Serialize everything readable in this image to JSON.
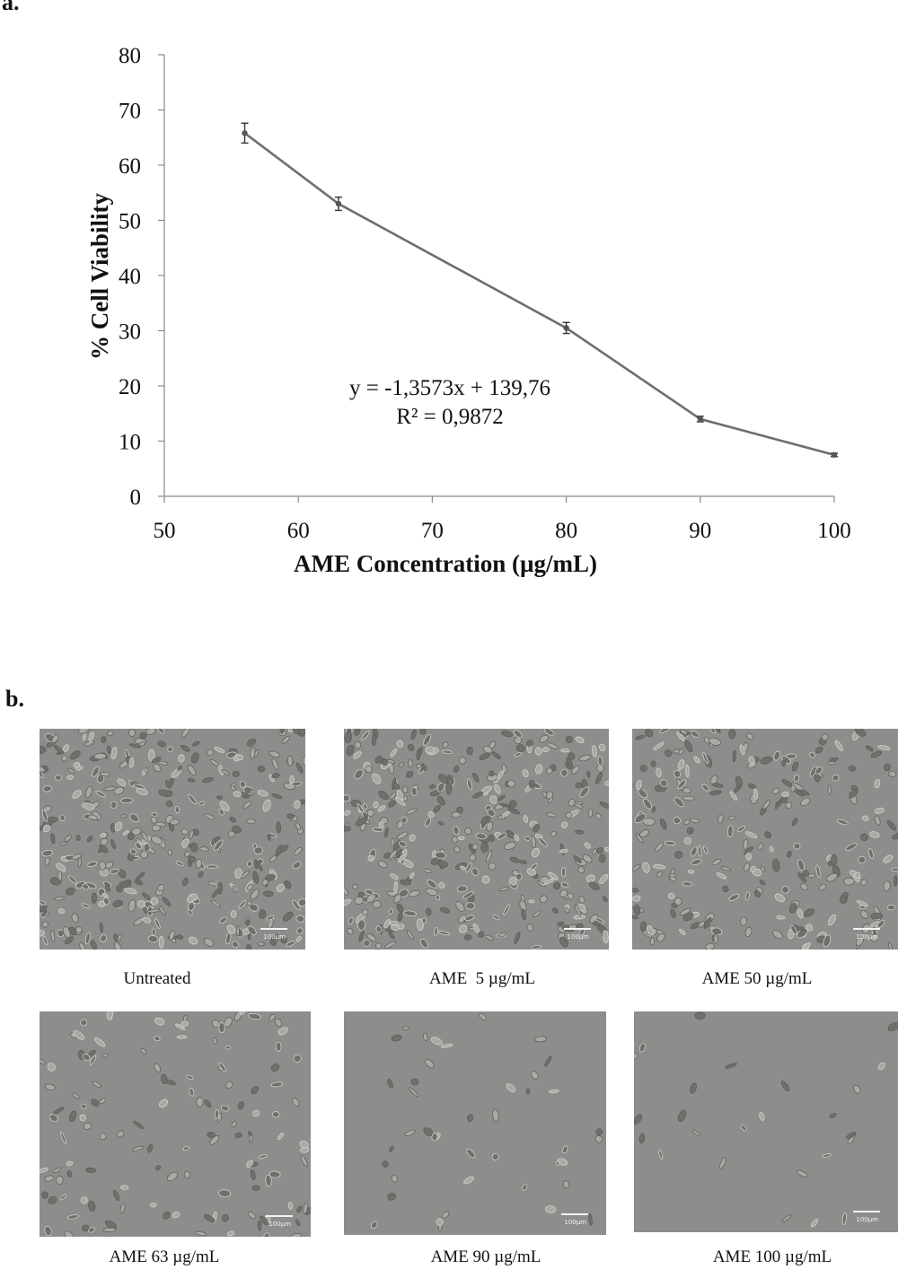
{
  "panels": {
    "a_label": "a.",
    "b_label": "b."
  },
  "chart_data": {
    "type": "line",
    "xlabel": "AME Concentration (µg/mL)",
    "ylabel": "% Cell Viability",
    "xlim": [
      50,
      100
    ],
    "ylim": [
      0,
      80
    ],
    "x_ticks": [
      "50",
      "60",
      "70",
      "80",
      "90",
      "100"
    ],
    "y_ticks": [
      "0",
      "10",
      "20",
      "30",
      "40",
      "50",
      "60",
      "70",
      "80"
    ],
    "x_tick_values": [
      50,
      60,
      70,
      80,
      90,
      100
    ],
    "y_tick_values": [
      0,
      10,
      20,
      30,
      40,
      50,
      60,
      70,
      80
    ],
    "grid": false,
    "series": [
      {
        "x": [
          56,
          63,
          80,
          90,
          100
        ],
        "y": [
          65.8,
          53.0,
          30.5,
          14.0,
          7.5
        ],
        "error": [
          1.8,
          1.2,
          1.0,
          0.5,
          0.3
        ],
        "color": "#6e6e6e"
      }
    ],
    "annotations": [
      "y = -1,3573x + 139,76",
      "R² = 0,9872"
    ]
  },
  "micrographs": [
    {
      "caption": "Untreated",
      "scale_label": "100µm",
      "density": 0.85
    },
    {
      "caption": "AME  5 µg/mL",
      "scale_label": "100µm",
      "density": 0.85
    },
    {
      "caption": "AME 50 µg/mL",
      "scale_label": "100µm",
      "density": 0.6
    },
    {
      "caption": "AME 63 µg/mL",
      "scale_label": "100µm",
      "density": 0.3
    },
    {
      "caption": "AME 90 µg/mL",
      "scale_label": "100µm",
      "density": 0.08
    },
    {
      "caption": "AME 100 µg/mL",
      "scale_label": "100µm",
      "density": 0.04
    }
  ]
}
